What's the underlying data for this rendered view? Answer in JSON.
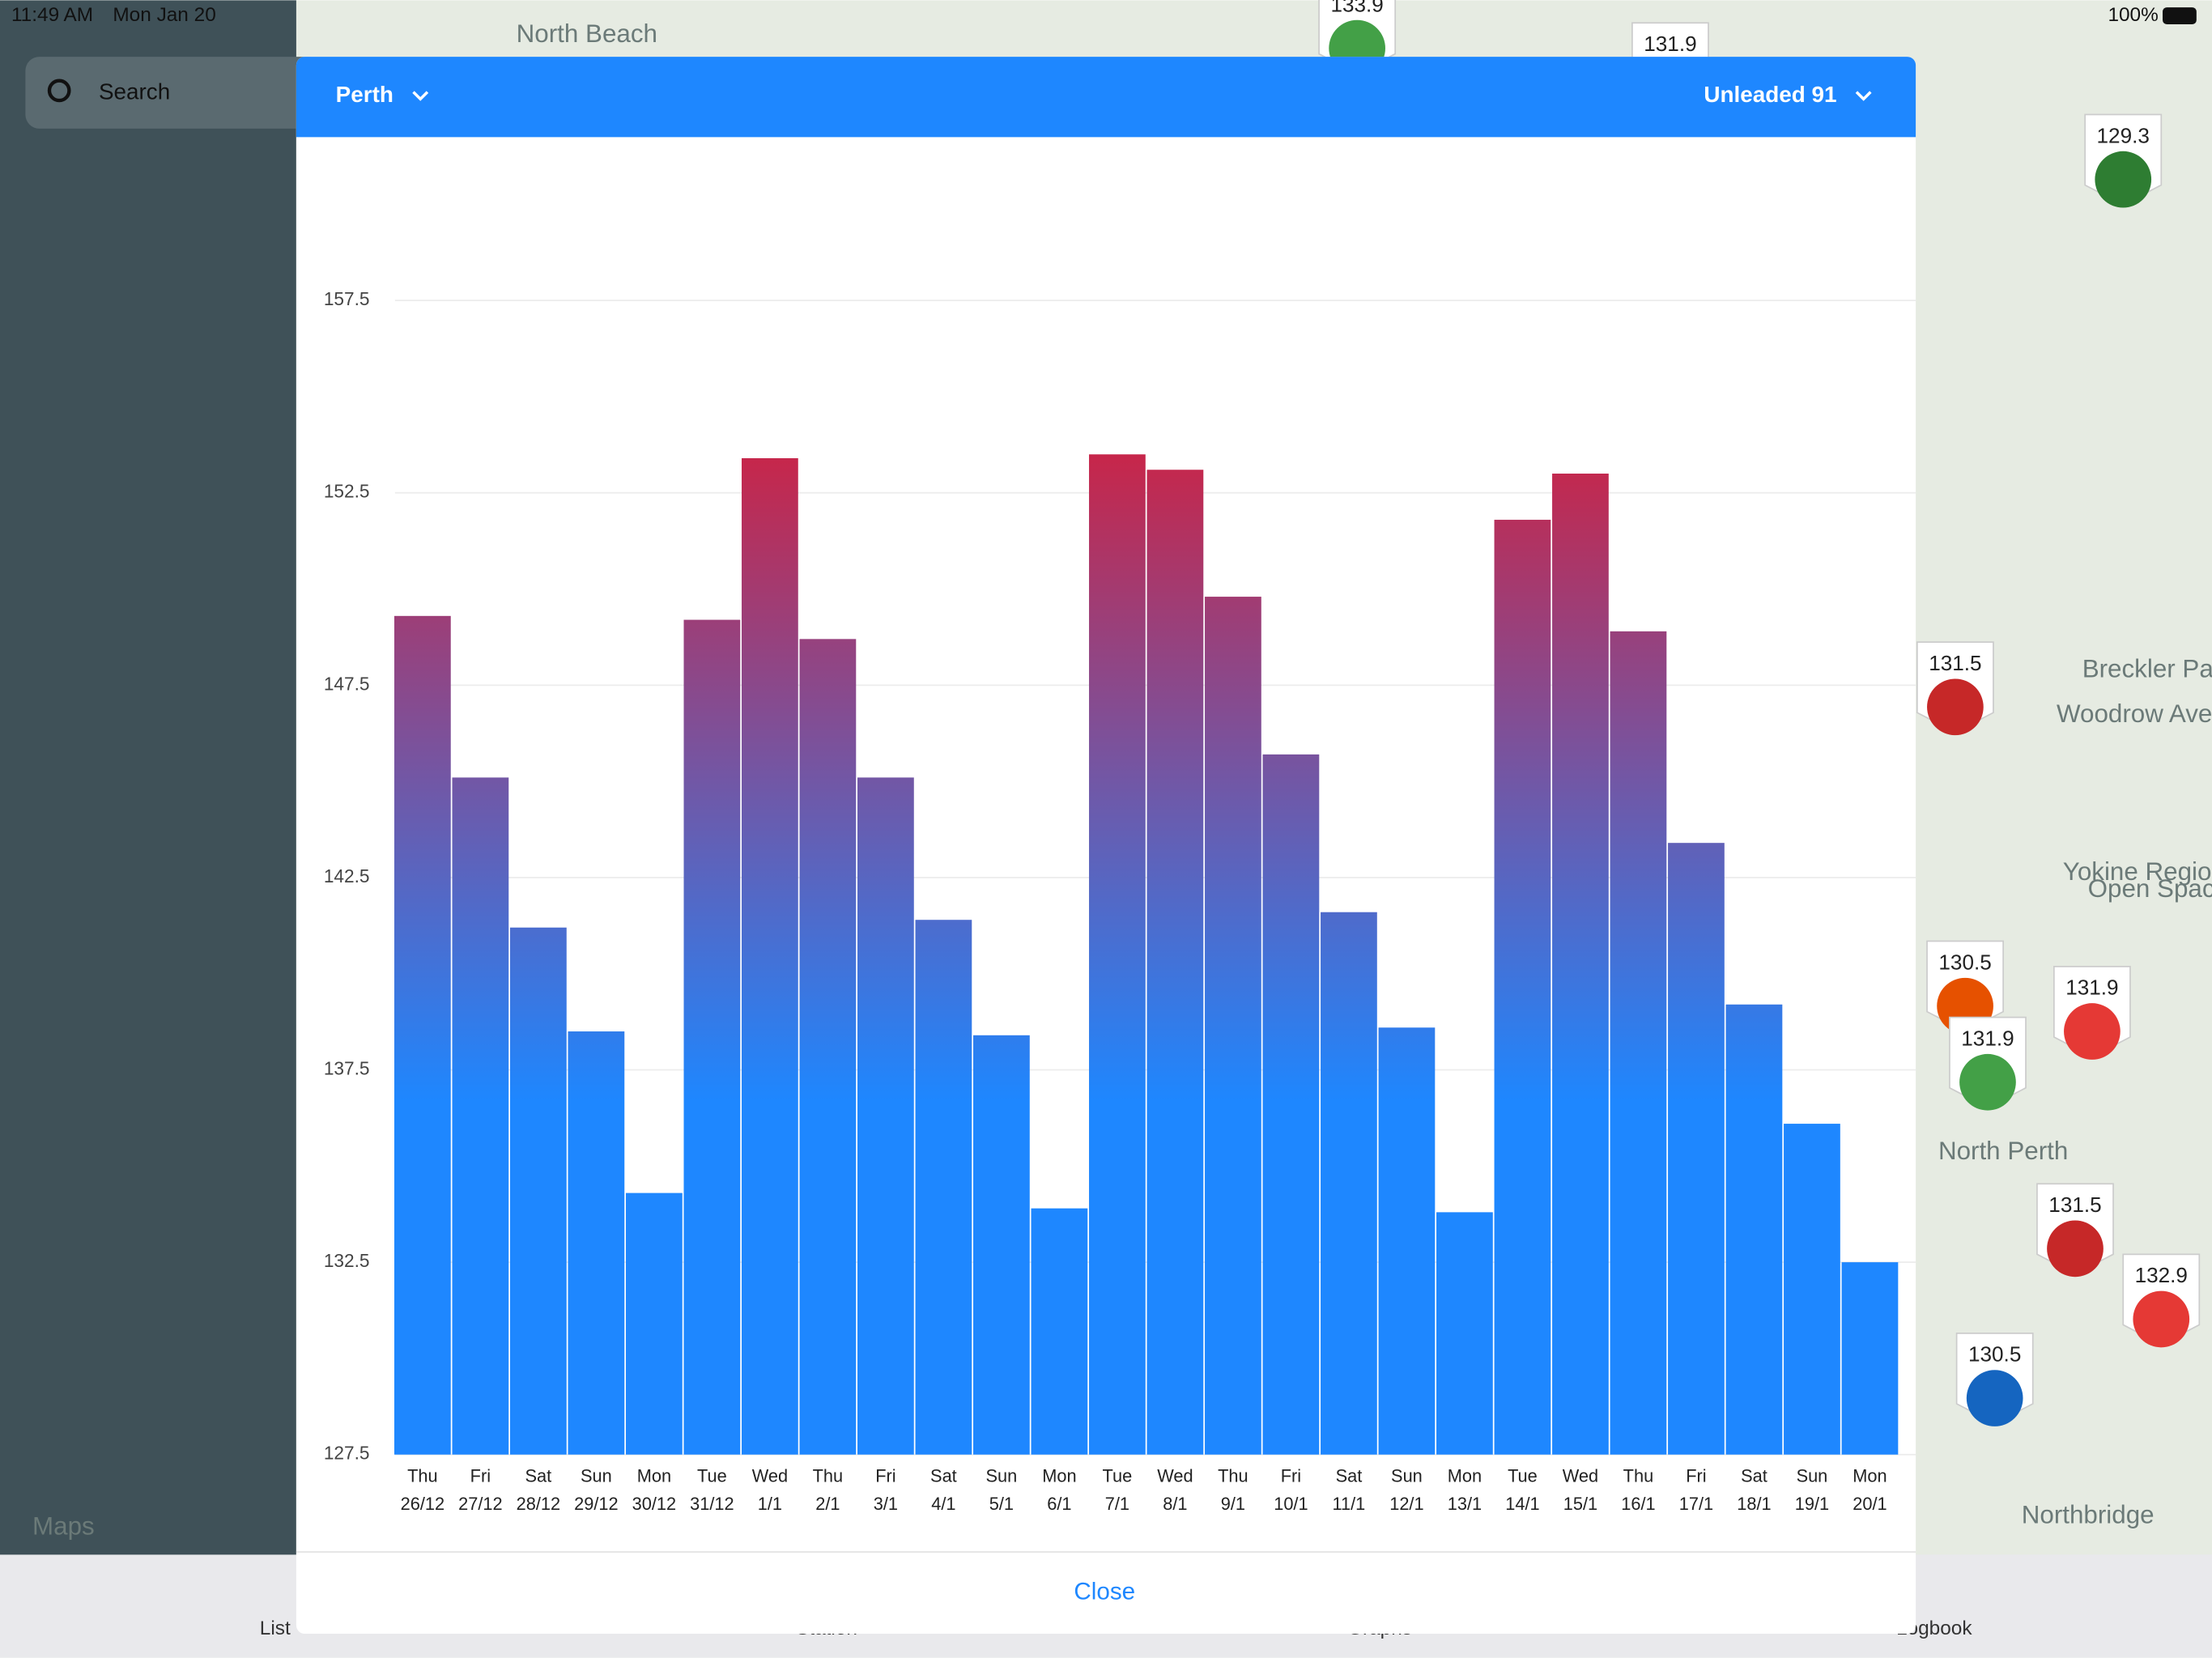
{
  "status_bar": {
    "time": "11:49 AM",
    "date": "Mon Jan 20",
    "battery": "100%"
  },
  "search": "Search",
  "header": {
    "city": "Perth",
    "fuel": "Unleaded 91"
  },
  "chart_data": {
    "type": "bar",
    "categories": [
      [
        "Thu",
        "26/12"
      ],
      [
        "Fri",
        "27/12"
      ],
      [
        "Sat",
        "28/12"
      ],
      [
        "Sun",
        "29/12"
      ],
      [
        "Mon",
        "30/12"
      ],
      [
        "Tue",
        "31/12"
      ],
      [
        "Wed",
        "1/1"
      ],
      [
        "Thu",
        "2/1"
      ],
      [
        "Fri",
        "3/1"
      ],
      [
        "Sat",
        "4/1"
      ],
      [
        "Sun",
        "5/1"
      ],
      [
        "Mon",
        "6/1"
      ],
      [
        "Tue",
        "7/1"
      ],
      [
        "Wed",
        "8/1"
      ],
      [
        "Thu",
        "9/1"
      ],
      [
        "Fri",
        "10/1"
      ],
      [
        "Sat",
        "11/1"
      ],
      [
        "Sun",
        "12/1"
      ],
      [
        "Mon",
        "13/1"
      ],
      [
        "Tue",
        "14/1"
      ],
      [
        "Wed",
        "15/1"
      ],
      [
        "Thu",
        "16/1"
      ],
      [
        "Fri",
        "17/1"
      ],
      [
        "Sat",
        "18/1"
      ],
      [
        "Sun",
        "19/1"
      ],
      [
        "Mon",
        "20/1"
      ]
    ],
    "values": [
      149.3,
      145.1,
      141.2,
      138.5,
      134.3,
      149.2,
      153.4,
      148.7,
      145.1,
      141.4,
      138.4,
      133.9,
      153.5,
      153.1,
      149.8,
      145.7,
      141.6,
      138.6,
      133.8,
      151.8,
      153.0,
      148.9,
      143.4,
      139.2,
      136.1,
      132.5
    ],
    "colors": [
      "#1e87ff",
      "#c7264a"
    ],
    "ylim": [
      127.5,
      160.5
    ],
    "yticks": [
      127.5,
      132.5,
      137.5,
      142.5,
      147.5,
      152.5,
      157.5
    ],
    "grid": true
  },
  "close": "Close",
  "map": {
    "labels": [
      "North Beach",
      "North Perth",
      "Northbridge",
      "Breckler Park",
      "Woodrow Ave",
      "Yokine Regional",
      "Open Space",
      "Maps"
    ],
    "prices": [
      "129.3",
      "131.5",
      "130.5",
      "131.9",
      "131.9",
      "131.5",
      "132.9",
      "130.5",
      "133.9",
      "131.9"
    ]
  },
  "tabs": [
    "List",
    "Station",
    "Graphs",
    "Logbook"
  ]
}
